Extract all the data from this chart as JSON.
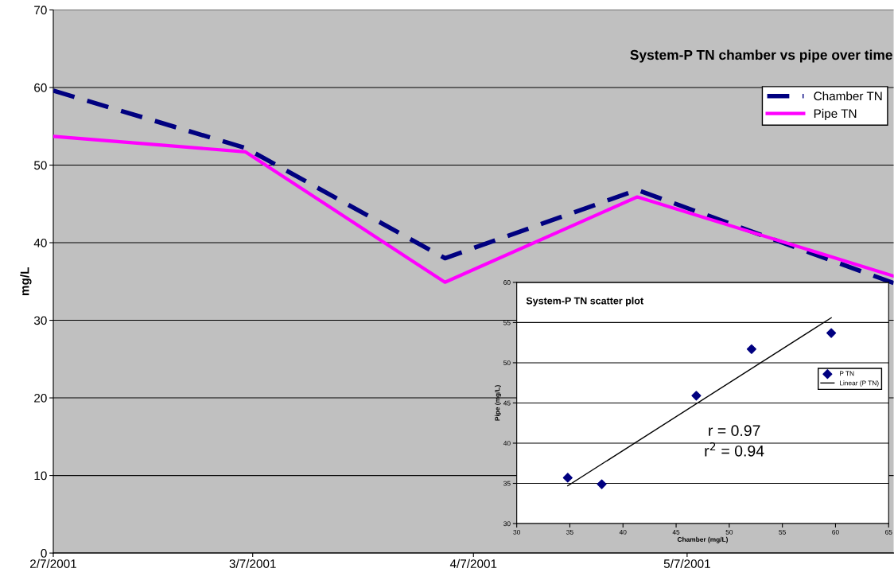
{
  "chart_data": [
    {
      "type": "line",
      "title": "System-P TN chamber vs pipe over time",
      "ylabel": "mg/L",
      "x": [
        "2001-02-07",
        "2001-03-06",
        "2001-04-03",
        "2001-04-30",
        "2001-06-05"
      ],
      "series": [
        {
          "name": "Chamber TN",
          "color": "#000080",
          "line_style": "dashed",
          "values": [
            59.6,
            52.2,
            38.0,
            46.8,
            34.8
          ]
        },
        {
          "name": "Pipe TN",
          "color": "#ff00ff",
          "line_style": "solid",
          "values": [
            53.7,
            51.7,
            34.9,
            45.9,
            35.7
          ]
        }
      ],
      "xlim": [
        "2001-02-07",
        "2001-06-05"
      ],
      "xticks": [
        {
          "value": "2001-02-07",
          "label": "2/7/2001"
        },
        {
          "value": "2001-03-07",
          "label": "3/7/2001"
        },
        {
          "value": "2001-04-07",
          "label": "4/7/2001"
        },
        {
          "value": "2001-05-07",
          "label": "5/7/2001"
        }
      ],
      "ylim": [
        0,
        70
      ],
      "yticks": [
        0,
        10,
        20,
        30,
        40,
        50,
        60,
        70
      ],
      "grid": "y",
      "legend": "top right"
    },
    {
      "type": "scatter",
      "title": "System-P TN scatter plot",
      "xlabel": "Chamber (mg/L)",
      "ylabel": "Pipe (mg/L)",
      "series": [
        {
          "name": "P TN",
          "color": "#000080",
          "marker": "diamond",
          "x": [
            34.8,
            38.0,
            46.9,
            52.1,
            59.6
          ],
          "values": [
            35.7,
            34.9,
            45.9,
            51.7,
            53.7
          ]
        },
        {
          "name": "Linear (P TN)",
          "type": "line",
          "color": "#000000",
          "x": [
            34.8,
            59.6
          ],
          "values": [
            34.7,
            55.6
          ]
        }
      ],
      "xlim": [
        30,
        65
      ],
      "xticks": [
        30,
        35,
        40,
        45,
        50,
        55,
        60,
        65
      ],
      "ylim": [
        30,
        60
      ],
      "yticks": [
        30,
        35,
        40,
        45,
        50,
        55,
        60
      ],
      "grid": "y",
      "legend": "right",
      "annotations": [
        "r = 0.97",
        "r$^{2}$ = 0.94"
      ]
    }
  ]
}
